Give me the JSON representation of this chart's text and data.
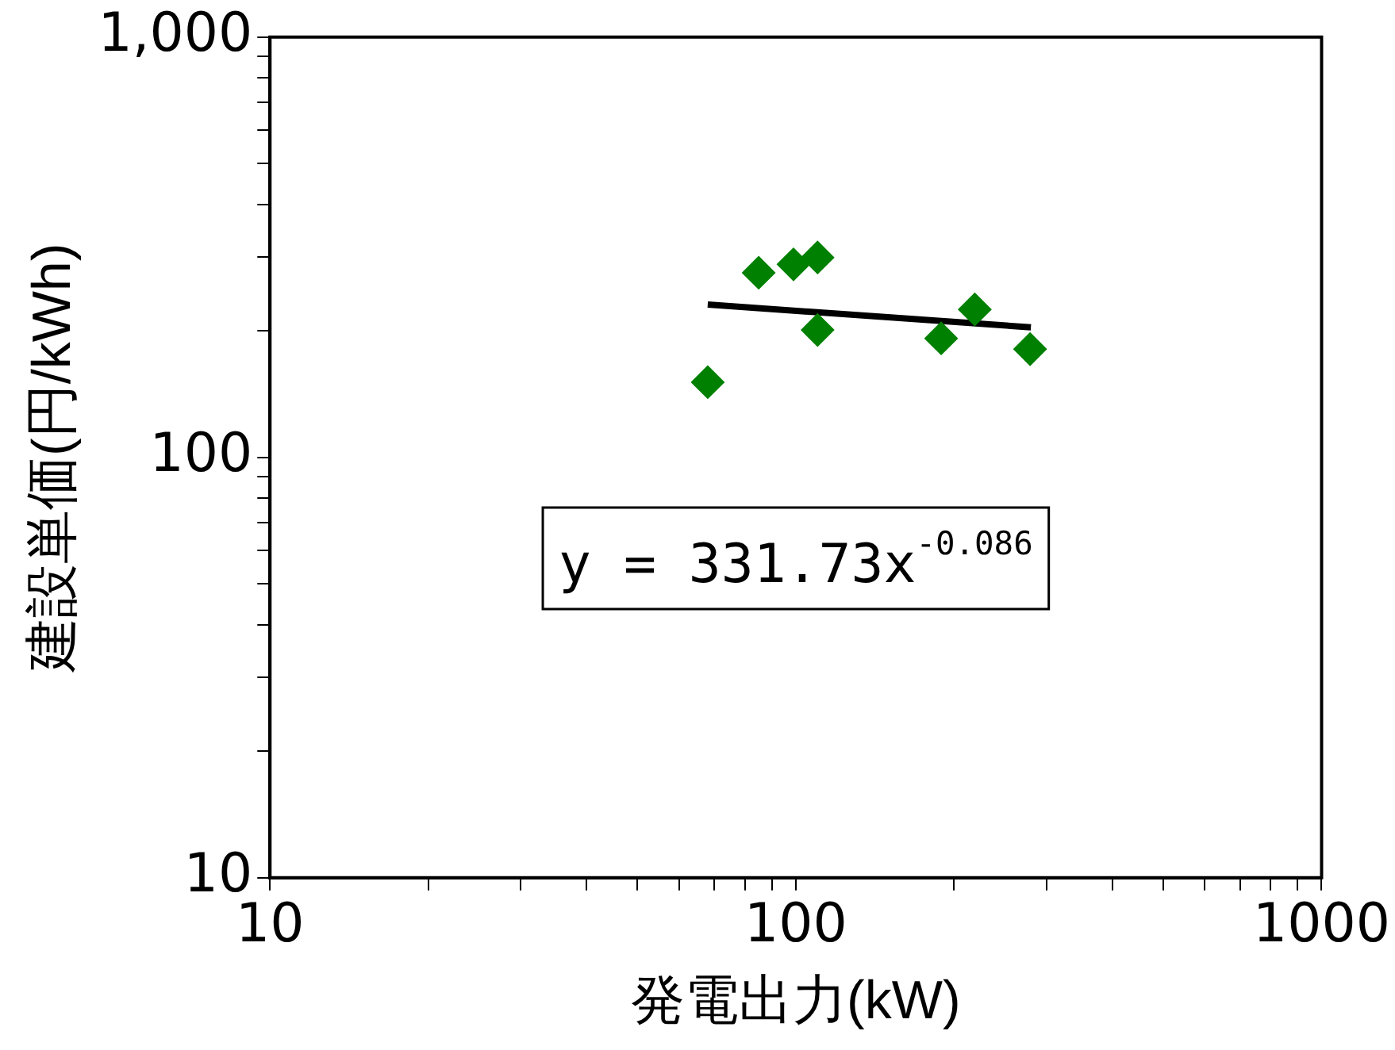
{
  "chart_data": {
    "type": "scatter",
    "xlabel": "発電出力(kW)",
    "ylabel": "建設単価(円/kWh)",
    "log": "xy",
    "grid": false,
    "xlim": [
      10,
      1000
    ],
    "ylim": [
      10,
      1000
    ],
    "xticks": [
      10,
      {
        "value": 20,
        "label": null
      },
      {
        "value": 30,
        "label": null
      },
      {
        "value": 40,
        "label": null
      },
      {
        "value": 50,
        "label": null
      },
      {
        "value": 60,
        "label": null
      },
      {
        "value": 70,
        "label": null
      },
      {
        "value": 80,
        "label": null
      },
      {
        "value": 90,
        "label": null
      },
      100,
      {
        "value": 200,
        "label": null
      },
      {
        "value": 300,
        "label": null
      },
      {
        "value": 400,
        "label": null
      },
      {
        "value": 500,
        "label": null
      },
      {
        "value": 600,
        "label": null
      },
      {
        "value": 700,
        "label": null
      },
      {
        "value": 800,
        "label": null
      },
      {
        "value": 900,
        "label": null
      },
      1000
    ],
    "yticks": [
      10,
      {
        "value": 20,
        "label": null
      },
      {
        "value": 30,
        "label": null
      },
      {
        "value": 40,
        "label": null
      },
      {
        "value": 50,
        "label": null
      },
      {
        "value": 60,
        "label": null
      },
      {
        "value": 70,
        "label": null
      },
      {
        "value": 80,
        "label": null
      },
      {
        "value": 90,
        "label": null
      },
      100,
      {
        "value": 200,
        "label": null
      },
      {
        "value": 300,
        "label": null
      },
      {
        "value": 400,
        "label": null
      },
      {
        "value": 500,
        "label": null
      },
      {
        "value": 600,
        "label": null
      },
      {
        "value": 700,
        "label": null
      },
      {
        "value": 800,
        "label": null
      },
      {
        "value": 900,
        "label": null
      },
      {
        "value": 1000,
        "label": "1,000"
      }
    ],
    "series": [
      {
        "type": "scatter",
        "color": "#008000",
        "marker": "diamond",
        "x": [
          68,
          85,
          99,
          110,
          110,
          189,
          219,
          279
        ],
        "values": [
          151,
          275,
          288,
          299,
          201,
          192,
          225,
          181
        ]
      },
      {
        "type": "line",
        "color": "#000000",
        "marker": "none",
        "line_style": "solid",
        "x": [
          68,
          280
        ],
        "values": [
          231,
          204
        ]
      }
    ],
    "annotations": [
      "y = 331.73x$^{-0.086}$"
    ]
  }
}
